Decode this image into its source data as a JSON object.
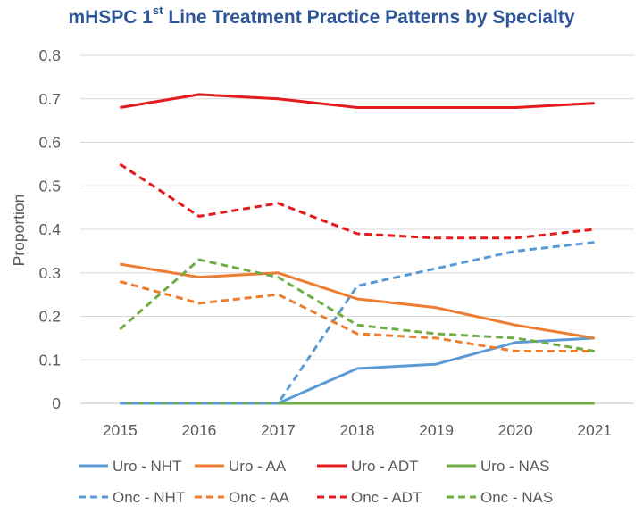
{
  "chart_data": {
    "type": "line",
    "title_parts": {
      "pre": "mHSPC 1",
      "sup": "st",
      "post": " Line Treatment Practice Patterns by Specialty"
    },
    "title_color": "#2e5596",
    "xlabel": "",
    "ylabel": "Proportion",
    "x": [
      "2015",
      "2016",
      "2017",
      "2018",
      "2019",
      "2020",
      "2021"
    ],
    "ylim": [
      0,
      0.8
    ],
    "yticks": [
      "0",
      "0.1",
      "0.2",
      "0.3",
      "0.4",
      "0.5",
      "0.6",
      "0.7",
      "0.8"
    ],
    "grid": true,
    "legend_position": "bottom",
    "series": [
      {
        "name": "Uro - NHT",
        "color": "#5b9bd5",
        "style": "solid",
        "values": [
          0,
          0,
          0,
          0.08,
          0.09,
          0.14,
          0.15
        ]
      },
      {
        "name": "Uro - AA",
        "color": "#ed7d31",
        "style": "solid",
        "values": [
          0.32,
          0.29,
          0.3,
          0.24,
          0.22,
          0.18,
          0.15
        ]
      },
      {
        "name": "Uro - ADT",
        "color": "#e41a1c",
        "style": "solid",
        "values": [
          0.68,
          0.71,
          0.7,
          0.68,
          0.68,
          0.68,
          0.69
        ]
      },
      {
        "name": "Uro - NAS",
        "color": "#70ad47",
        "style": "solid",
        "values": [
          0,
          0,
          0,
          0,
          0,
          0,
          0
        ]
      },
      {
        "name": "Onc - NHT",
        "color": "#5b9bd5",
        "style": "dashed",
        "values": [
          0,
          0,
          0,
          0.27,
          0.31,
          0.35,
          0.37
        ]
      },
      {
        "name": "Onc - AA",
        "color": "#ed7d31",
        "style": "dashed",
        "values": [
          0.28,
          0.23,
          0.25,
          0.16,
          0.15,
          0.12,
          0.12
        ]
      },
      {
        "name": "Onc - ADT",
        "color": "#e41a1c",
        "style": "dashed",
        "values": [
          0.55,
          0.43,
          0.46,
          0.39,
          0.38,
          0.38,
          0.4
        ]
      },
      {
        "name": "Onc - NAS",
        "color": "#70ad47",
        "style": "dashed",
        "values": [
          0.17,
          0.33,
          0.29,
          0.18,
          0.16,
          0.15,
          0.12
        ]
      }
    ]
  }
}
